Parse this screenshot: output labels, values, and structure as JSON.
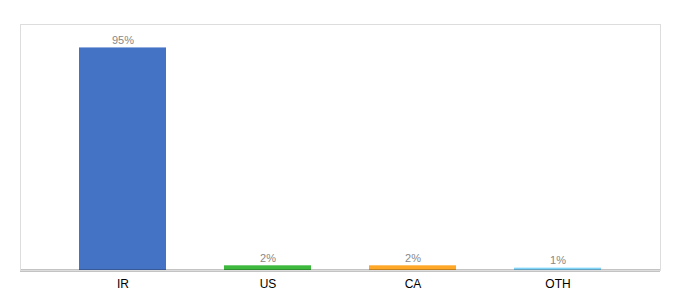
{
  "chart_data": {
    "type": "bar",
    "categories": [
      "IR",
      "US",
      "CA",
      "OTH"
    ],
    "values": [
      95,
      2,
      2,
      1
    ],
    "value_labels": [
      "95%",
      "2%",
      "2%",
      "1%"
    ],
    "colors": [
      "#4472c4",
      "#3dba3d",
      "#ffa726",
      "#81d4fa"
    ],
    "ylim": [
      0,
      105
    ],
    "grid": false,
    "data_labels": true,
    "tick_labels": "x"
  }
}
